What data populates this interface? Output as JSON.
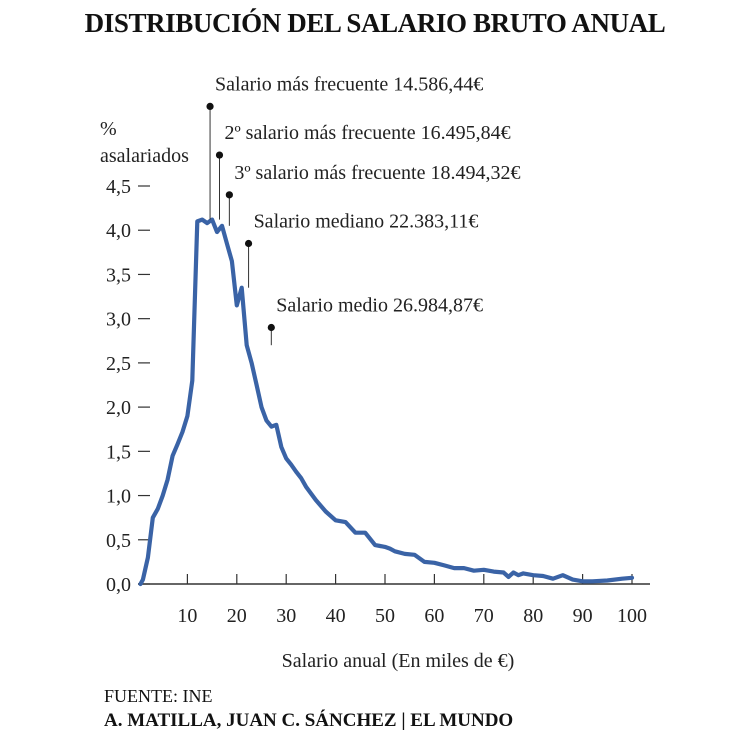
{
  "chart_data": {
    "type": "line",
    "title": "DISTRIBUCIÓN DEL SALARIO BRUTO ANUAL",
    "ylabel_line1": "%",
    "ylabel_line2": "asalariados",
    "xlabel": "Salario anual (En miles de €)",
    "xlim": [
      0,
      100
    ],
    "ylim": [
      0,
      4.5
    ],
    "x_ticks": [
      10,
      20,
      30,
      40,
      50,
      60,
      70,
      80,
      90,
      100
    ],
    "x_tick_labels": [
      "10",
      "20",
      "30",
      "40",
      "50",
      "60",
      "70",
      "80",
      "90",
      "100"
    ],
    "y_ticks": [
      0,
      0.5,
      1,
      1.5,
      2,
      2.5,
      3,
      3.5,
      4,
      4.5
    ],
    "y_tick_labels": [
      "0,0",
      "0,5",
      "1,0",
      "1,5",
      "2,0",
      "2,5",
      "3,0",
      "3,5",
      "4,0",
      "4,5"
    ],
    "color": "#3a63a6",
    "series": [
      {
        "x": [
          0.5,
          1,
          2,
          3,
          4,
          5,
          6,
          7,
          8,
          9,
          10,
          11,
          12,
          13,
          14,
          15,
          16,
          17,
          18,
          19,
          20,
          21,
          22,
          23,
          24,
          25,
          26,
          27,
          28,
          29,
          30,
          31,
          32,
          33,
          34,
          36,
          38,
          40,
          42,
          44,
          46,
          48,
          49,
          50,
          51,
          52,
          54,
          56,
          58,
          60,
          62,
          64,
          66,
          68,
          70,
          72,
          74,
          75,
          76,
          77,
          78,
          80,
          82,
          84,
          86,
          88,
          90,
          92,
          95,
          98,
          100
        ],
        "y": [
          0.0,
          0.05,
          0.3,
          0.75,
          0.85,
          1.0,
          1.18,
          1.45,
          1.58,
          1.72,
          1.9,
          2.3,
          4.1,
          4.12,
          4.08,
          4.12,
          3.98,
          4.05,
          3.85,
          3.65,
          3.15,
          3.35,
          2.7,
          2.5,
          2.25,
          2.0,
          1.85,
          1.78,
          1.8,
          1.55,
          1.42,
          1.35,
          1.27,
          1.2,
          1.1,
          0.95,
          0.82,
          0.72,
          0.7,
          0.58,
          0.58,
          0.44,
          0.43,
          0.42,
          0.4,
          0.37,
          0.34,
          0.33,
          0.25,
          0.24,
          0.21,
          0.18,
          0.18,
          0.15,
          0.16,
          0.14,
          0.13,
          0.08,
          0.13,
          0.1,
          0.12,
          0.1,
          0.09,
          0.06,
          0.1,
          0.05,
          0.03,
          0.03,
          0.04,
          0.06,
          0.07
        ]
      }
    ],
    "annotations": [
      {
        "label": "Salario más frecuente 14.586,44€",
        "x": 14.586,
        "y": 4.12,
        "dot_y": 5.4
      },
      {
        "label": "2º salario más frecuente 16.495,84€",
        "x": 16.496,
        "y": 4.12,
        "dot_y": 4.85
      },
      {
        "label": "3º salario más frecuente 18.494,32€",
        "x": 18.494,
        "y": 4.05,
        "dot_y": 4.4
      },
      {
        "label": "Salario mediano 22.383,11€",
        "x": 22.383,
        "y": 3.35,
        "dot_y": 3.85
      },
      {
        "label": "Salario medio 26.984,87€",
        "x": 26.985,
        "y": 2.7,
        "dot_y": 2.9
      }
    ]
  },
  "footer": {
    "source": "FUENTE: INE",
    "credit": "A. MATILLA, JUAN C. SÁNCHEZ | EL MUNDO"
  }
}
